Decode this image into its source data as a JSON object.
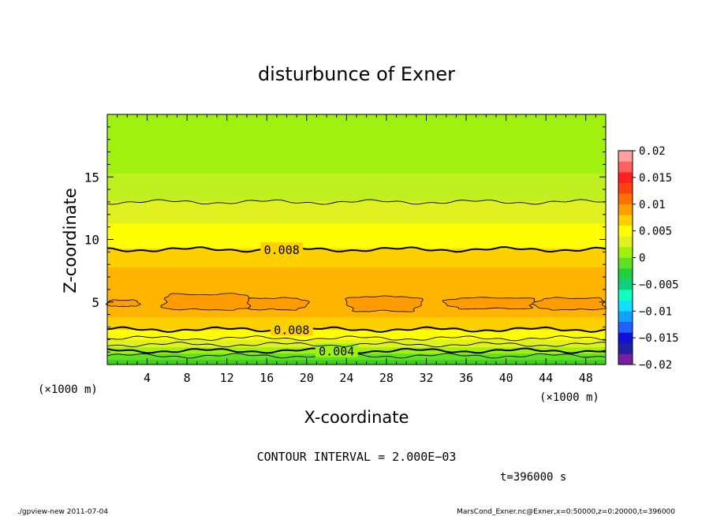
{
  "chart_data": {
    "type": "contour",
    "title": "disturbunce of Exner",
    "xlabel": "X-coordinate",
    "ylabel": "Z-coordinate",
    "x_unit_left": "(×1000 m)",
    "x_unit_right": "(×1000 m)",
    "xlim": [
      0,
      50
    ],
    "ylim": [
      0,
      20
    ],
    "x_ticks": [
      "4",
      "8",
      "12",
      "16",
      "20",
      "24",
      "28",
      "32",
      "36",
      "40",
      "44",
      "48"
    ],
    "x_tick_values": [
      4,
      8,
      12,
      16,
      20,
      24,
      28,
      32,
      36,
      40,
      44,
      48
    ],
    "y_ticks": [
      "5",
      "10",
      "15"
    ],
    "y_tick_values": [
      5,
      10,
      15
    ],
    "colorbar": {
      "labels": [
        "0.02",
        "0.015",
        "0.01",
        "0.005",
        "0",
        "−0.005",
        "−0.01",
        "−0.015",
        "−0.02"
      ],
      "min": -0.02,
      "max": 0.02,
      "colors": [
        "#7a1fa2",
        "#2020a0",
        "#1010d8",
        "#2060ff",
        "#10a0ff",
        "#10e0ff",
        "#10ffc0",
        "#10d080",
        "#20d040",
        "#60e020",
        "#a0f010",
        "#e0f020",
        "#ffff00",
        "#ffd000",
        "#ffa000",
        "#ff7000",
        "#ff4010",
        "#ff2020",
        "#ff6060",
        "#ffa0a0"
      ]
    },
    "contour_labels": [
      "0.008",
      "0.008",
      "0.004"
    ],
    "contour_interval": "CONTOUR INTERVAL = 2.000E−03",
    "time_label": "t=396000 s",
    "levels": [
      {
        "z0": 0.0,
        "z1": 0.4,
        "value": 0.0,
        "color": "#40d020"
      },
      {
        "z0": 0.4,
        "z1": 0.9,
        "value": 0.002,
        "color": "#60e020"
      },
      {
        "z0": 0.9,
        "z1": 1.4,
        "value": 0.004,
        "color": "#a0f010"
      },
      {
        "z0": 1.4,
        "z1": 2.0,
        "value": 0.006,
        "color": "#e0f020"
      },
      {
        "z0": 2.0,
        "z1": 2.8,
        "value": 0.007,
        "color": "#ffff00"
      },
      {
        "z0": 2.8,
        "z1": 3.8,
        "value": 0.009,
        "color": "#ffd000"
      },
      {
        "z0": 3.8,
        "z1": 7.8,
        "value": 0.011,
        "color": "#ffb400"
      },
      {
        "z0": 7.8,
        "z1": 9.3,
        "value": 0.009,
        "color": "#ffd000"
      },
      {
        "z0": 9.3,
        "z1": 11.3,
        "value": 0.007,
        "color": "#ffff00"
      },
      {
        "z0": 11.3,
        "z1": 13.1,
        "value": 0.005,
        "color": "#e0f020"
      },
      {
        "z0": 13.1,
        "z1": 15.3,
        "value": 0.003,
        "color": "#c0f020"
      },
      {
        "z0": 15.3,
        "z1": 20.0,
        "value": 0.002,
        "color": "#a0f010"
      }
    ],
    "contour_lines": [
      {
        "z": 0.7,
        "label": "",
        "bold": false
      },
      {
        "z": 1.1,
        "label": "0.004",
        "label_x": 23.0,
        "bold": true
      },
      {
        "z": 1.6,
        "label": "",
        "bold": false
      },
      {
        "z": 2.1,
        "label": "",
        "bold": false
      },
      {
        "z": 2.8,
        "label": "0.008",
        "label_x": 18.5,
        "bold": true
      },
      {
        "z": 9.2,
        "label": "0.008",
        "label_x": 17.5,
        "bold": true
      },
      {
        "z": 13.0,
        "label": "",
        "bold": false
      }
    ],
    "cells": [
      {
        "x0": 0.0,
        "x1": 3.2,
        "z0": 4.5,
        "z1": 5.3
      },
      {
        "x0": 5.5,
        "x1": 15.0,
        "z0": 4.0,
        "z1": 6.0
      },
      {
        "x0": 14.0,
        "x1": 20.0,
        "z0": 4.1,
        "z1": 5.6
      },
      {
        "x0": 24.0,
        "x1": 31.5,
        "z0": 3.9,
        "z1": 5.8
      },
      {
        "x0": 34.0,
        "x1": 43.0,
        "z0": 4.2,
        "z1": 5.6
      },
      {
        "x0": 43.0,
        "x1": 50.0,
        "z0": 4.1,
        "z1": 5.6
      }
    ]
  },
  "footer": {
    "left": "./gpview-new   2011-07-04",
    "right": "MarsCond_Exner.nc@Exner,x=0:50000,z=0:20000,t=396000"
  }
}
